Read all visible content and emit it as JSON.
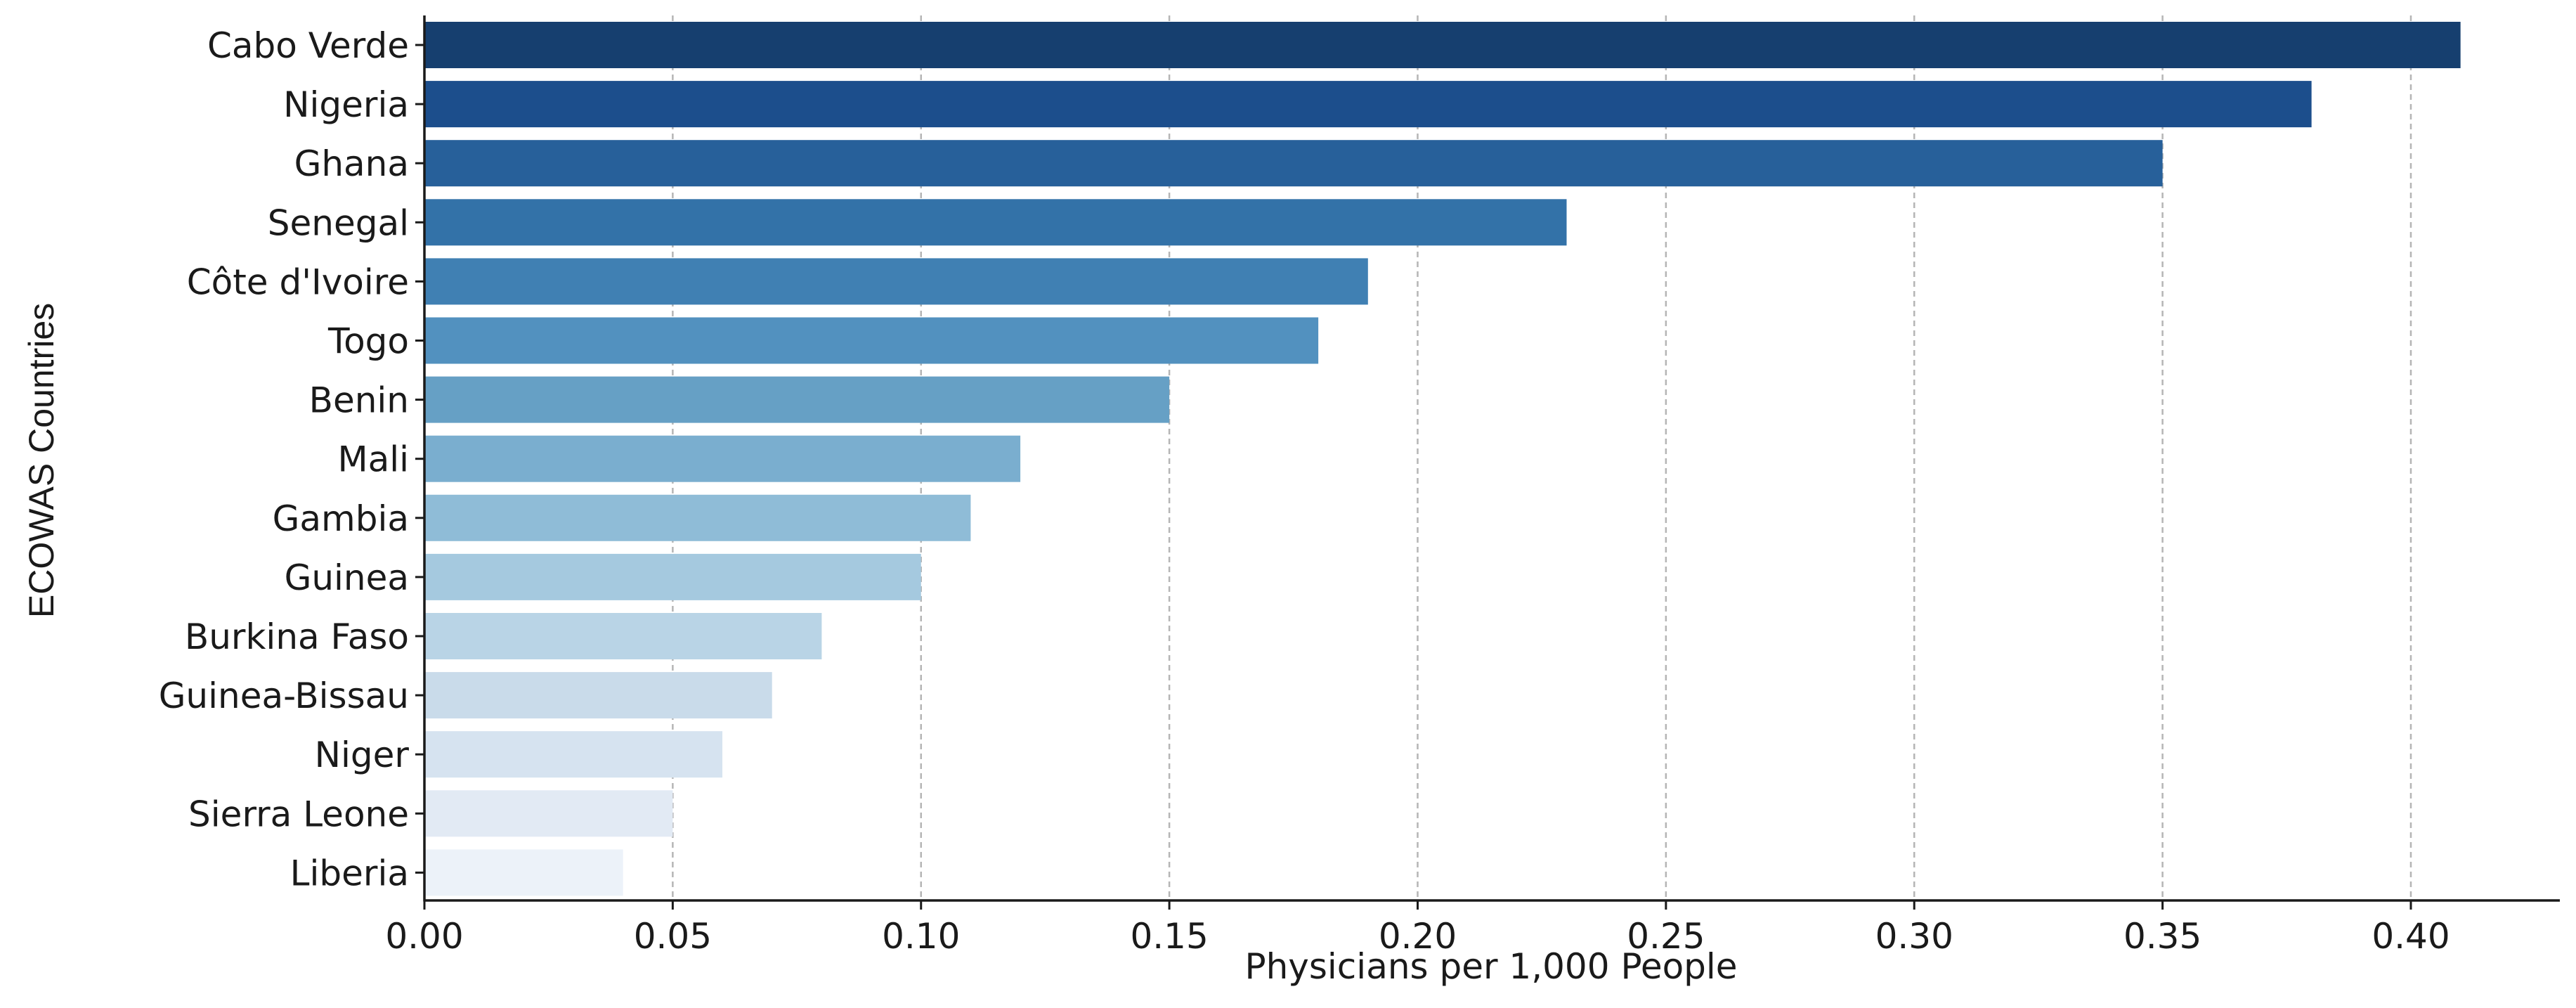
{
  "chart_data": {
    "type": "bar",
    "orientation": "horizontal",
    "title": "",
    "xlabel": "Physicians per 1,000 People",
    "ylabel": "ECOWAS Countries",
    "categories": [
      "Cabo Verde",
      "Nigeria",
      "Ghana",
      "Senegal",
      "Côte d'Ivoire",
      "Togo",
      "Benin",
      "Mali",
      "Gambia",
      "Guinea",
      "Burkina Faso",
      "Guinea-Bissau",
      "Niger",
      "Sierra Leone",
      "Liberia"
    ],
    "values": [
      0.41,
      0.38,
      0.35,
      0.23,
      0.19,
      0.18,
      0.15,
      0.12,
      0.11,
      0.1,
      0.08,
      0.07,
      0.06,
      0.05,
      0.04
    ],
    "xlim": [
      0,
      0.43
    ],
    "xticks": [
      "0.00",
      "0.05",
      "0.10",
      "0.15",
      "0.20",
      "0.25",
      "0.30",
      "0.35",
      "0.40"
    ],
    "xtick_values": [
      0,
      0.05,
      0.1,
      0.15,
      0.2,
      0.25,
      0.3,
      0.35,
      0.4
    ],
    "grid": "vertical dashed",
    "legend": "none",
    "colors": [
      "#163f6f",
      "#1c4e8c",
      "#27609a",
      "#3372a8",
      "#4080b3",
      "#5291bf",
      "#66a0c5",
      "#7aaecf",
      "#8fbcd7",
      "#a5c9df",
      "#b9d4e6",
      "#c9dbea",
      "#d6e3f0",
      "#e2eaf4",
      "#ecf2f9"
    ]
  }
}
